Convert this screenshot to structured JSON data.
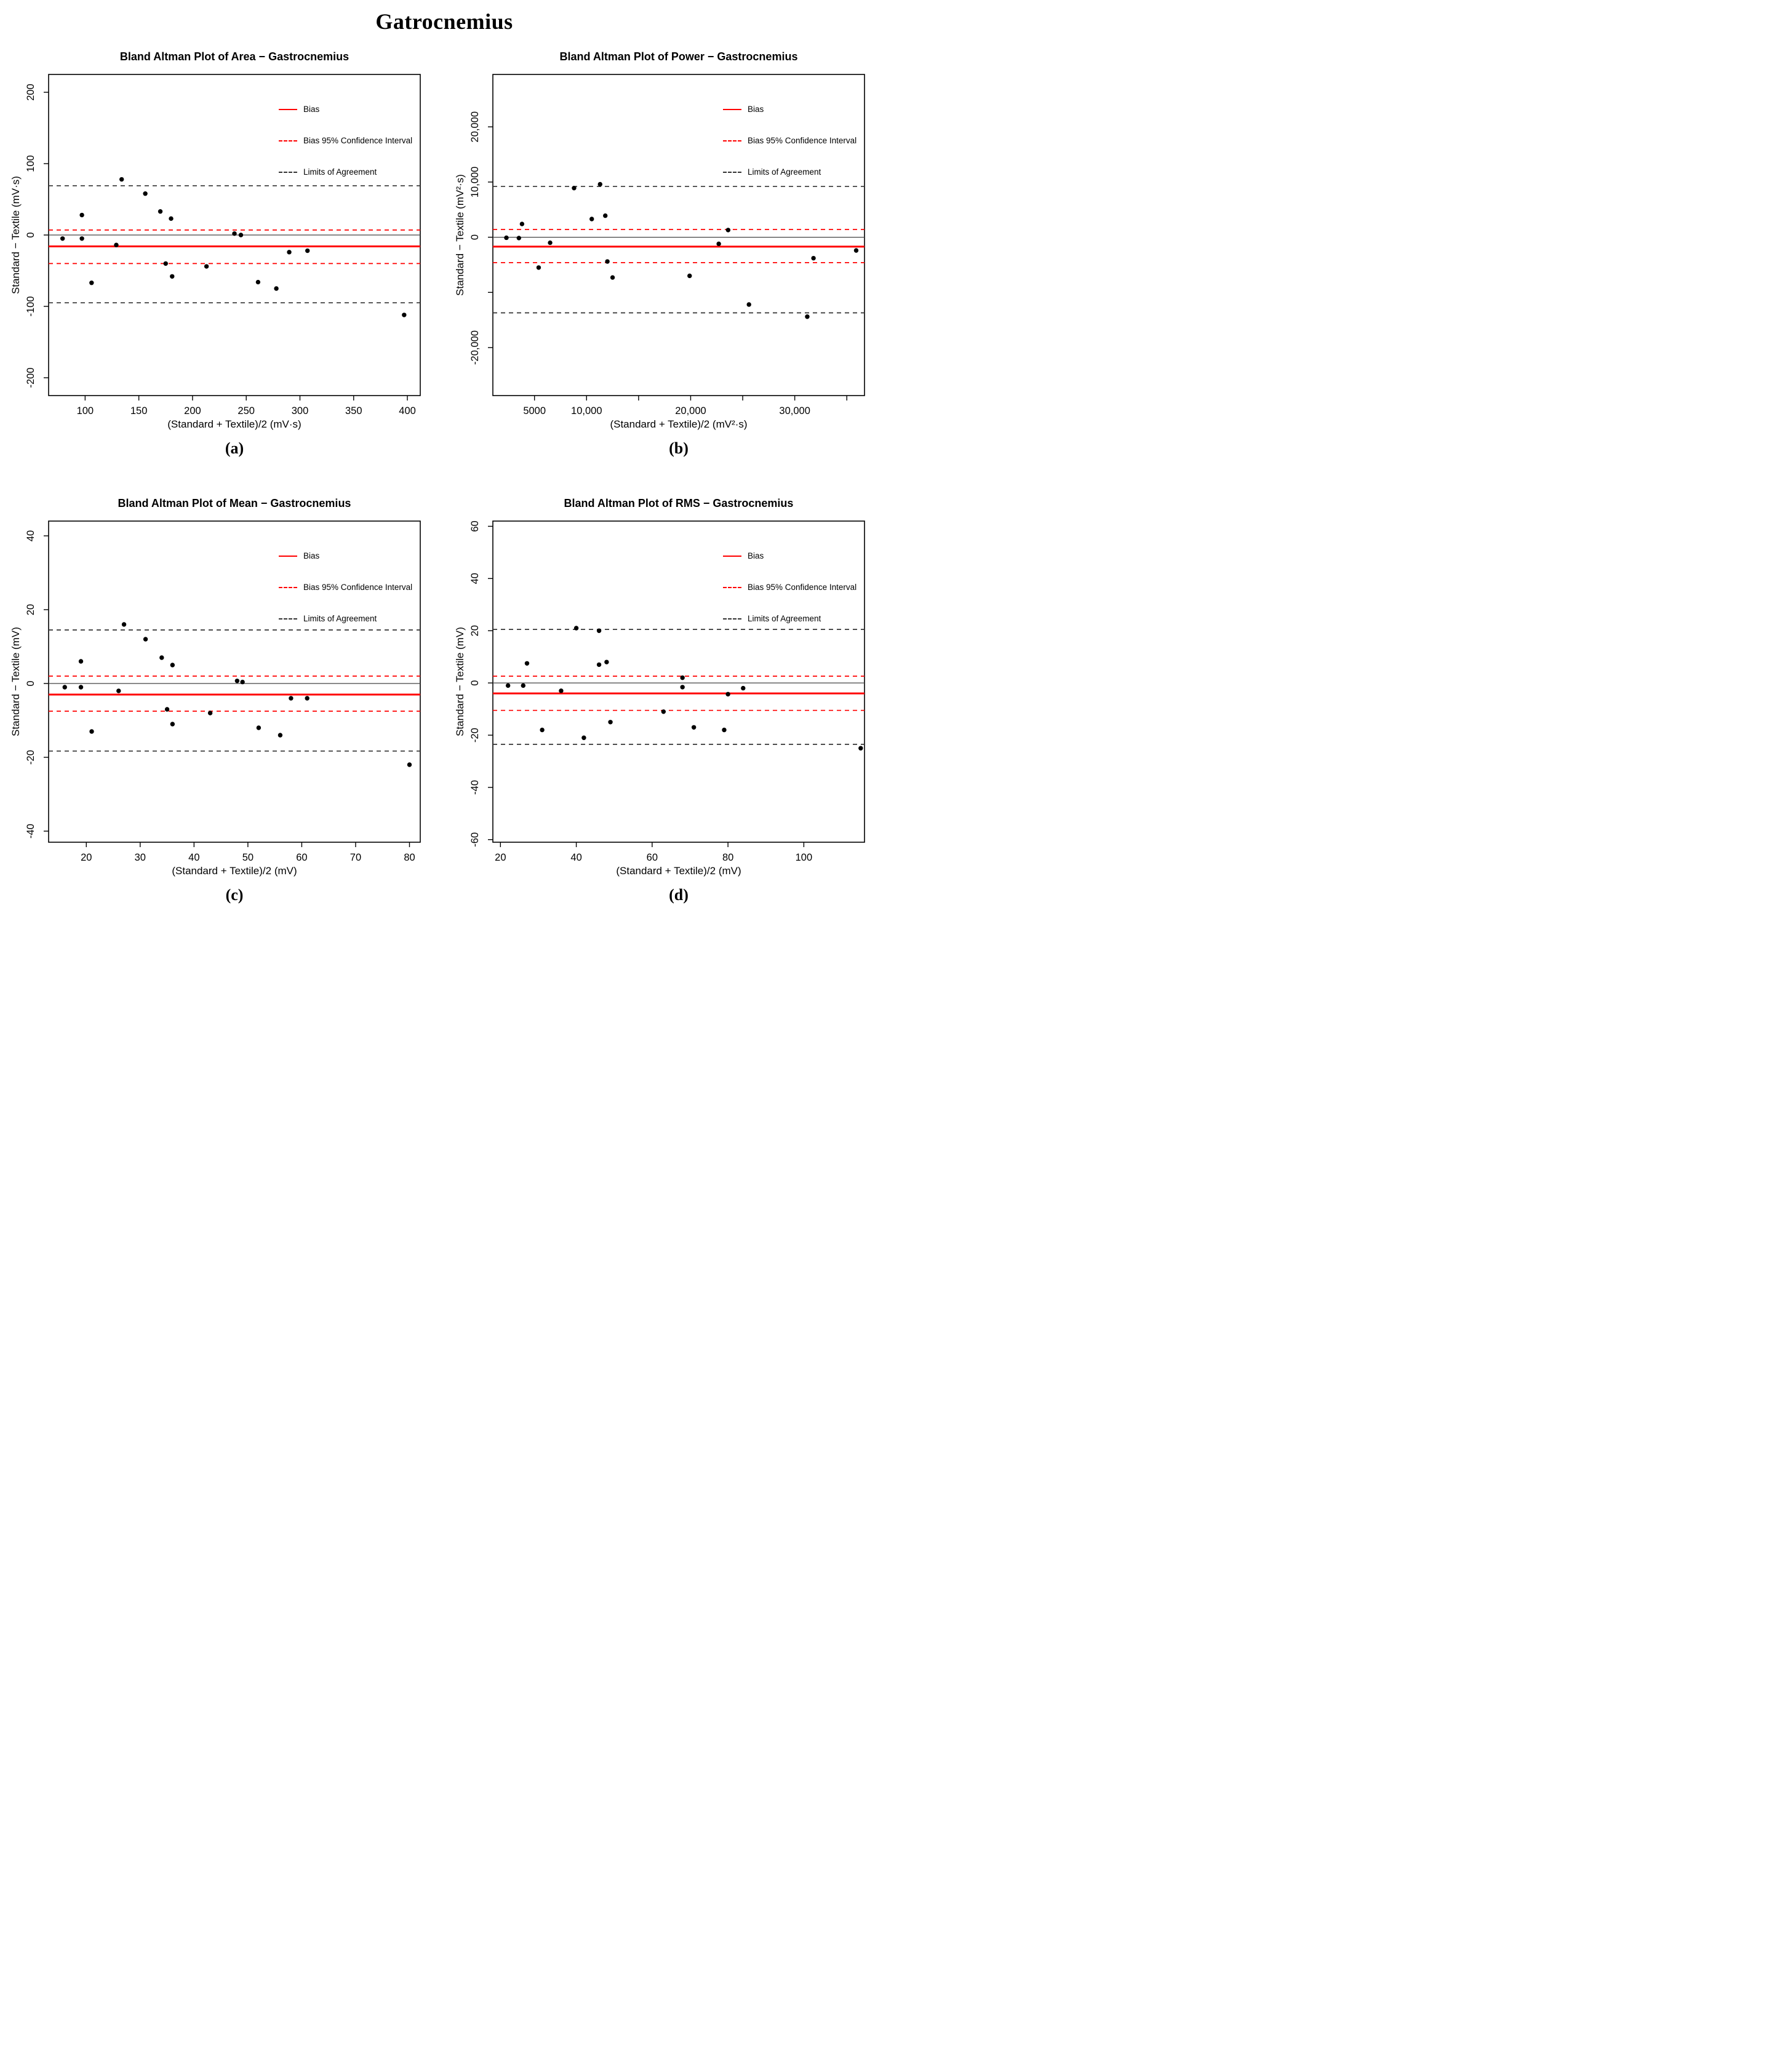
{
  "page_title": "Gatrocnemius",
  "legend": {
    "bias": "Bias",
    "ci": "Bias 95% Confidence Interval",
    "loa": "Limits of Agreement"
  },
  "colors": {
    "bias_line": "#FF0000",
    "ci_line": "#FF0000",
    "loa_line": "#333333",
    "zero_line": "#444444",
    "point": "#000000",
    "box": "#000000"
  },
  "chart_data": [
    {
      "type": "scatter",
      "label": "(a)",
      "title": "Bland Altman Plot of Area − Gastrocnemius",
      "xlabel": "(Standard + Textile)/2 (mV·s)",
      "ylabel": "Standard − Textile (mV·s)",
      "xlim": [
        66,
        412
      ],
      "ylim": [
        -225,
        225
      ],
      "grid": false,
      "legend_position": "top-right",
      "xticks": [
        {
          "v": 100,
          "label": "100"
        },
        {
          "v": 150,
          "label": "150"
        },
        {
          "v": 200,
          "label": "200"
        },
        {
          "v": 250,
          "label": "250"
        },
        {
          "v": 300,
          "label": "300"
        },
        {
          "v": 350,
          "label": "350"
        },
        {
          "v": 400,
          "label": "400"
        }
      ],
      "yticks": [
        {
          "v": 200,
          "label": "200"
        },
        {
          "v": 100,
          "label": "100"
        },
        {
          "v": 0,
          "label": "0"
        },
        {
          "v": -100,
          "label": "-100"
        },
        {
          "v": -200,
          "label": "-200"
        }
      ],
      "lines": {
        "zero": 0,
        "bias": -16,
        "ci_upper": 7,
        "ci_lower": -40,
        "loa_upper": 69,
        "loa_lower": -95
      },
      "points": [
        [
          79,
          -5
        ],
        [
          97,
          28
        ],
        [
          97,
          -5
        ],
        [
          106,
          -67
        ],
        [
          129,
          -14
        ],
        [
          134,
          78
        ],
        [
          156,
          58
        ],
        [
          170,
          33
        ],
        [
          175,
          -40
        ],
        [
          180,
          23
        ],
        [
          181,
          -58
        ],
        [
          213,
          -44
        ],
        [
          239,
          2
        ],
        [
          245,
          0
        ],
        [
          261,
          -66
        ],
        [
          278,
          -75
        ],
        [
          290,
          -24
        ],
        [
          307,
          -22
        ],
        [
          397,
          -112
        ]
      ]
    },
    {
      "type": "scatter",
      "label": "(b)",
      "title": "Bland Altman Plot of Power − Gastrocnemius",
      "xlabel": "(Standard + Textile)/2 (mV²·s)",
      "ylabel": "Standard − Textile (mV²·s)",
      "xlim": [
        1000,
        36700
      ],
      "ylim": [
        -28700,
        29500
      ],
      "grid": false,
      "legend_position": "top-right",
      "xticks": [
        {
          "v": 5000,
          "label": "5000"
        },
        {
          "v": 10000,
          "label": "10,000"
        },
        {
          "v": 15000,
          "label": ""
        },
        {
          "v": 20000,
          "label": "20,000"
        },
        {
          "v": 25000,
          "label": ""
        },
        {
          "v": 30000,
          "label": "30,000"
        },
        {
          "v": 35000,
          "label": ""
        }
      ],
      "yticks": [
        {
          "v": 20000,
          "label": "20,000"
        },
        {
          "v": 10000,
          "label": "10,000"
        },
        {
          "v": 0,
          "label": "0"
        },
        {
          "v": -10000,
          "label": ""
        },
        {
          "v": -20000,
          "label": "-20,000"
        }
      ],
      "lines": {
        "zero": 0,
        "bias": -1700,
        "ci_upper": 1400,
        "ci_lower": -4600,
        "loa_upper": 9200,
        "loa_lower": -13700
      },
      "points": [
        [
          2300,
          -100
        ],
        [
          3500,
          -150
        ],
        [
          3800,
          2400
        ],
        [
          5400,
          -5500
        ],
        [
          6500,
          -1000
        ],
        [
          8800,
          8900
        ],
        [
          10500,
          3300
        ],
        [
          11300,
          9600
        ],
        [
          11800,
          3900
        ],
        [
          12000,
          -4400
        ],
        [
          12500,
          -7300
        ],
        [
          19900,
          -7000
        ],
        [
          22700,
          -1200
        ],
        [
          23600,
          1300
        ],
        [
          25600,
          -12200
        ],
        [
          31200,
          -14400
        ],
        [
          31800,
          -3800
        ],
        [
          35900,
          -2400
        ]
      ]
    },
    {
      "type": "scatter",
      "label": "(c)",
      "title": "Bland Altman Plot of Mean − Gastrocnemius",
      "xlabel": "(Standard + Textile)/2 (mV)",
      "ylabel": "Standard − Textile (mV)",
      "xlim": [
        13,
        82
      ],
      "ylim": [
        -43,
        44
      ],
      "grid": false,
      "legend_position": "top-right",
      "xticks": [
        {
          "v": 20,
          "label": "20"
        },
        {
          "v": 30,
          "label": "30"
        },
        {
          "v": 40,
          "label": "40"
        },
        {
          "v": 50,
          "label": "50"
        },
        {
          "v": 60,
          "label": "60"
        },
        {
          "v": 70,
          "label": "70"
        },
        {
          "v": 80,
          "label": "80"
        }
      ],
      "yticks": [
        {
          "v": 40,
          "label": "40"
        },
        {
          "v": 20,
          "label": "20"
        },
        {
          "v": 0,
          "label": "0"
        },
        {
          "v": -20,
          "label": "-20"
        },
        {
          "v": -40,
          "label": "-40"
        }
      ],
      "lines": {
        "zero": 0,
        "bias": -3,
        "ci_upper": 2,
        "ci_lower": -7.5,
        "loa_upper": 14.5,
        "loa_lower": -18.3
      },
      "points": [
        [
          16,
          -1
        ],
        [
          19,
          6
        ],
        [
          19,
          -1
        ],
        [
          21,
          -13
        ],
        [
          26,
          -2
        ],
        [
          27,
          16
        ],
        [
          31,
          12
        ],
        [
          34,
          7
        ],
        [
          35,
          -7
        ],
        [
          36,
          5
        ],
        [
          36,
          -11
        ],
        [
          43,
          -8
        ],
        [
          48,
          0.7
        ],
        [
          49,
          0.4
        ],
        [
          52,
          -12
        ],
        [
          56,
          -14
        ],
        [
          58,
          -4
        ],
        [
          61,
          -4
        ],
        [
          80,
          -22
        ]
      ]
    },
    {
      "type": "scatter",
      "label": "(d)",
      "title": "Bland Altman Plot of RMS − Gastrocnemius",
      "xlabel": "(Standard + Textile)/2 (mV)",
      "ylabel": "Standard − Textile (mV)",
      "xlim": [
        18,
        116
      ],
      "ylim": [
        -61,
        62
      ],
      "grid": false,
      "legend_position": "top-right",
      "xticks": [
        {
          "v": 20,
          "label": "20"
        },
        {
          "v": 40,
          "label": "40"
        },
        {
          "v": 60,
          "label": "60"
        },
        {
          "v": 80,
          "label": "80"
        },
        {
          "v": 100,
          "label": "100"
        }
      ],
      "yticks": [
        {
          "v": 60,
          "label": "60"
        },
        {
          "v": 40,
          "label": "40"
        },
        {
          "v": 20,
          "label": "20"
        },
        {
          "v": 0,
          "label": "0"
        },
        {
          "v": -20,
          "label": "-20"
        },
        {
          "v": -40,
          "label": "-40"
        },
        {
          "v": -60,
          "label": "-60"
        }
      ],
      "lines": {
        "zero": 0,
        "bias": -4,
        "ci_upper": 2.6,
        "ci_lower": -10.5,
        "loa_upper": 20.5,
        "loa_lower": -23.5
      },
      "points": [
        [
          22,
          -1
        ],
        [
          26,
          -1
        ],
        [
          27,
          7.5
        ],
        [
          31,
          -18
        ],
        [
          36,
          -3
        ],
        [
          40,
          21
        ],
        [
          42,
          -21
        ],
        [
          46,
          20
        ],
        [
          46,
          7
        ],
        [
          48,
          8
        ],
        [
          49,
          -15
        ],
        [
          63,
          -11
        ],
        [
          68,
          2
        ],
        [
          68,
          -1.6
        ],
        [
          71,
          -17
        ],
        [
          79,
          -18
        ],
        [
          80,
          -4.3
        ],
        [
          84,
          -2
        ],
        [
          115,
          -25
        ]
      ]
    }
  ]
}
